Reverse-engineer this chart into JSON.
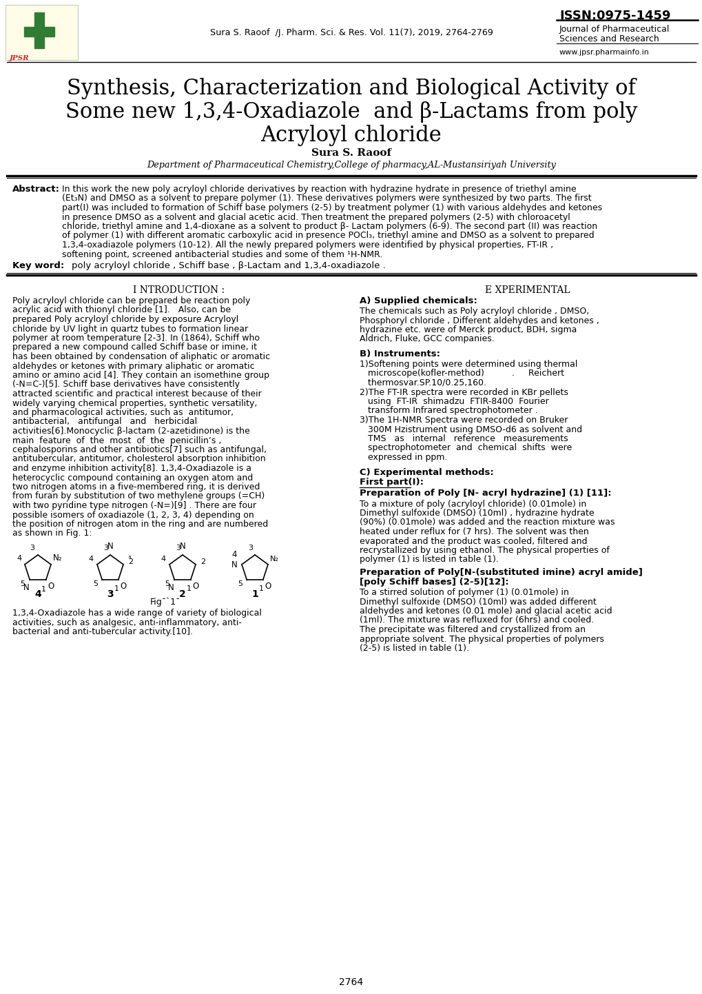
{
  "bg_color": "#ffffff",
  "page_width": 10.2,
  "page_height": 14.42,
  "issn_text": "ISSN:0975-1459",
  "journal_name_line1": "Journal of Pharmaceutical",
  "journal_name_line2": "Sciences and Research",
  "website": "www.jpsr.pharmainfo.in",
  "citation": "Sura S. Raoof  /J. Pharm. Sci. & Res. Vol. 11(7), 2019, 2764-2769",
  "main_title_line1": "Synthesis, Characterization and Biological Activity of",
  "main_title_line2": "Some new 1,3,4-Oxadiazole  and β-Lactams from poly",
  "main_title_line3": "Acryloyl chloride",
  "author_name": "Sura S. Raoof",
  "author_affil": "Department of Pharmaceutical Chemistry,College of pharmacy,AL-Mustansiriyah University",
  "abstract_label": "Abstract:",
  "abstract_lines": [
    "In this work the new poly acryloyl chloride derivatives by reaction with hydrazine hydrate in presence of triethyl amine",
    "(Et₃N) and DMSO as a solvent to prepare polymer (1). These derivatives polymers were synthesized by two parts. The first",
    "part(I) was included to formation of Schiff base polymers (2-5) by treatment polymer (1) with various aldehydes and ketones",
    "in presence DMSO as a solvent and glacial acetic acid. Then treatment the prepared polymers (2-5) with chloroacetyl",
    "chloride, triethyl amine and 1,4-dioxane as a solvent to product β- Lactam polymers (6-9). The second part (II) was reaction",
    "of polymer (1) with different aromatic carboxylic acid in presence POCl₃, triethyl amine and DMSO as a solvent to prepared",
    "1,3,4-oxadiazole polymers (10-12). All the newly prepared polymers were identified by physical properties, FT-IR ,",
    "softening point, screened antibacterial studies and some of them ¹H-NMR."
  ],
  "keyword_label": "Key word:",
  "keyword_text": "poly acryloyl chloride , Schiff base , β-Lactam and 1,3,4-oxadiazole .",
  "intro_heading": "Introduction :",
  "intro_lines": [
    "Poly acryloyl chloride can be prepared be reaction poly",
    "acrylic acid with thionyl chloride [1].   Also, can be",
    "prepared Poly acryloyl chloride by exposure Acryloyl",
    "chloride by UV light in quartz tubes to formation linear",
    "polymer at room temperature [2-3]. In (1864), Schiff who",
    "prepared a new compound called Schiff base or imine, it",
    "has been obtained by condensation of aliphatic or aromatic",
    "aldehydes or ketones with primary aliphatic or aromatic",
    "amino or amino acid [4]. They contain an isomethine group",
    "(-N=C-)[5]. Schiff base derivatives have consistently",
    "attracted scientific and practical interest because of their",
    "widely varying chemical properties, synthetic versatility,",
    "and pharmacological activities, such as  antitumor,",
    "antibacterial,   antifungal   and   herbicidal",
    "activities[6].Monocyclic β-lactam (2-azetidinone) is the",
    "main  feature  of  the  most  of  the  penicillin’s ,",
    "cephalosporins and other antibiotics[7] such as antifungal,",
    "antitubercular, antitumor, cholesterol absorption inhibition",
    "and enzyme inhibition activity[8]. 1,3,4-Oxadiazole is a",
    "heterocyclic compound containing an oxygen atom and",
    "two nitrogen atoms in a five-membered ring, it is derived",
    "from furan by substitution of two methylene groups (=CH)",
    "with two pyridine type nitrogen (-N=)[9] . There are four",
    "possible isomers of oxadiazole (1, 2, 3, 4) depending on",
    "the position of nitrogen atom in the ring and are numbered",
    "as shown in Fig. 1:"
  ],
  "intro_bottom_lines": [
    "1,3,4-Oxadiazole has a wide range of variety of biological",
    "activities, such as analgesic, anti-inflammatory, anti-",
    "bacterial and anti-tubercular activity.[10]."
  ],
  "fig_caption": "Fig¯`1¯",
  "exp_heading": "Experimental",
  "exp_a_heading": "A) Supplied chemicals:",
  "exp_a_lines": [
    "The chemicals such as Poly acryloyl chloride , DMSO,",
    "Phosphoryl chloride , Different aldehydes and ketones ,",
    "hydrazine etc. were of Merck product, BDH, sigma",
    "Aldrich, Fluke, GCC companies."
  ],
  "exp_b_heading": "B) Instruments:",
  "exp_b_lines": [
    "1)Softening points were determined using thermal",
    "   microscope(kofler-method)          .     Reichert",
    "   thermosvar.SP.10/0.25,160.",
    "2)The FT-IR spectra were recorded in KBr pellets",
    "   using  FT-IR  shimadzu  FTIR-8400  Fourier",
    "   transform Infrared spectrophotometer .",
    "3)The 1H-NMR Spectra were recorded on Bruker",
    "   300M Hzistrument using DMSO-d6 as solvent and",
    "   TMS   as   internal   reference   measurements",
    "   spectrophotometer  and  chemical  shifts  were",
    "   expressed in ppm."
  ],
  "exp_c_heading": "C) Experimental methods:",
  "exp_c_first_part": "First part(I):",
  "exp_c_prep1_heading": "Preparation of Poly [N- acryl hydrazine] (1) [11]:",
  "exp_c_prep1_lines": [
    "To a mixture of poly (acryloyl chloride) (0.01mole) in",
    "Dimethyl sulfoxide (DMSO) (10ml) , hydrazine hydrate",
    "(90%) (0.01mole) was added and the reaction mixture was",
    "heated under reflux for (7 hrs). The solvent was then",
    "evaporated and the product was cooled, filtered and",
    "recrystallized by using ethanol. The physical properties of",
    "polymer (1) is listed in table (1)."
  ],
  "exp_c_prep2_heading1": "Preparation of Poly[N-(substituted imine) acryl amide]",
  "exp_c_prep2_heading2": "[poly Schiff bases] (2-5)[12]:",
  "exp_c_prep2_lines": [
    "To a stirred solution of polymer (1) (0.01mole) in",
    "Dimethyl sulfoxide (DMSO) (10ml) was added different",
    "aldehydes and ketones (0.01 mole) and glacial acetic acid",
    "(1ml). The mixture was refluxed for (6hrs) and cooled.",
    "The precipitate was filtered and crystallized from an",
    "appropriate solvent. The physical properties of polymers",
    "(2-5) is listed in table (1)."
  ],
  "page_number": "2764"
}
